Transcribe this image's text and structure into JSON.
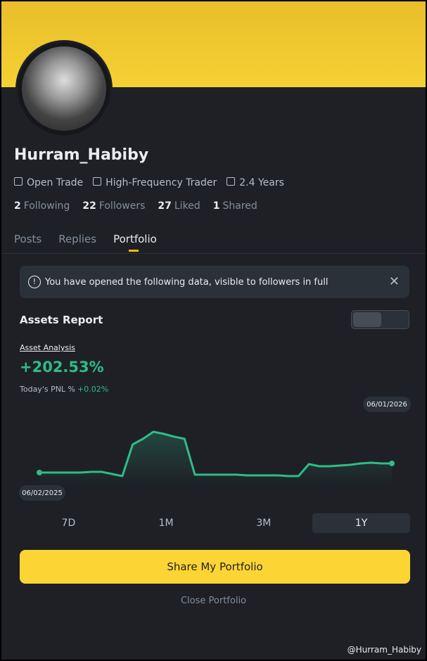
{
  "profile": {
    "username": "Hurram_Habiby",
    "tags": [
      "Open Trade",
      "High-Frequency Trader",
      "2.4 Years"
    ],
    "stats": [
      {
        "value": "2",
        "label": "Following"
      },
      {
        "value": "22",
        "label": "Followers"
      },
      {
        "value": "27",
        "label": "Liked"
      },
      {
        "value": "1",
        "label": "Shared"
      }
    ]
  },
  "tabs": [
    "Posts",
    "Replies",
    "Portfolio"
  ],
  "notice": "You have opened the following data, visible to followers in full",
  "section_title": "Assets Report",
  "asset_analysis": "Asset Analysis",
  "pnl_total": "+202.53%",
  "today_pnl_label": "Today's PNL %",
  "today_pnl_value": "+0.02%",
  "chart_data": {
    "type": "line",
    "start_label": "06/02/2025",
    "end_label": "06/01/2026",
    "color": "#2ebd85",
    "ylim": [
      -10,
      70
    ],
    "values": [
      0,
      0,
      0,
      0,
      0,
      1,
      1,
      -2,
      -5,
      40,
      48,
      58,
      55,
      51,
      48,
      -3,
      -3,
      -3,
      -3,
      -3,
      -4,
      -4,
      -4,
      -4,
      -5,
      -5,
      12,
      9,
      9,
      10,
      11,
      13,
      14,
      13,
      13
    ]
  },
  "ranges": [
    "7D",
    "1M",
    "3M",
    "1Y"
  ],
  "share_button": "Share My Portfolio",
  "close_button": "Close Portfolio",
  "watermark": "@Hurram_Habiby"
}
